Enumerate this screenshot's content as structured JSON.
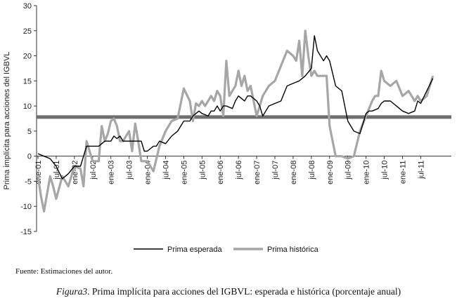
{
  "source": "Fuente: Estimaciones del autor.",
  "caption": {
    "figure_label": "Figura3",
    "text": ". Prima implícita para acciones del IGBVL: esperada e histórica (porcentaje anual)"
  },
  "chart_data": {
    "type": "line",
    "title": "",
    "ylabel": "Prima implícita para acciones del IGBVL",
    "xlabel": "",
    "ylim": [
      -15,
      30
    ],
    "yticks": [
      -15,
      -10,
      -5,
      0,
      5,
      10,
      15,
      20,
      25,
      30
    ],
    "xlim": [
      0,
      131
    ],
    "xticks": [
      {
        "label": "ene-01",
        "x": 0
      },
      {
        "label": "jul-01",
        "x": 6
      },
      {
        "label": "ene-02",
        "x": 12
      },
      {
        "label": "jul-02",
        "x": 18
      },
      {
        "label": "ene-03",
        "x": 24
      },
      {
        "label": "jul-03",
        "x": 30
      },
      {
        "label": "ene-04",
        "x": 36
      },
      {
        "label": "jul-04",
        "x": 42
      },
      {
        "label": "ene-05",
        "x": 48
      },
      {
        "label": "jul-05",
        "x": 54
      },
      {
        "label": "ene-06",
        "x": 60
      },
      {
        "label": "jul-06",
        "x": 66
      },
      {
        "label": "ene-07",
        "x": 72
      },
      {
        "label": "jul-07",
        "x": 78
      },
      {
        "label": "ene-08",
        "x": 84
      },
      {
        "label": "jul-08",
        "x": 90
      },
      {
        "label": "ene-09",
        "x": 96
      },
      {
        "label": "jul-09",
        "x": 102
      },
      {
        "label": "ene-10",
        "x": 108
      },
      {
        "label": "jul-10",
        "x": 114
      },
      {
        "label": "ene-11",
        "x": 120
      },
      {
        "label": "jul-11",
        "x": 126
      }
    ],
    "grid": false,
    "legend_position": "bottom-center",
    "reference_line": {
      "y": 7.8,
      "color": "#6e6e6e"
    },
    "series": [
      {
        "name": "Prima esperada",
        "color": "#000000",
        "x": [
          0,
          2,
          4,
          6,
          8,
          10,
          12,
          14,
          16,
          18,
          20,
          22,
          24,
          25,
          26,
          27,
          28,
          30,
          32,
          34,
          35,
          36,
          38,
          39,
          40,
          42,
          44,
          46,
          48,
          50,
          51,
          52,
          53,
          54,
          56,
          57,
          58,
          59,
          60,
          61,
          62,
          64,
          65,
          66,
          68,
          69,
          70,
          72,
          73,
          74,
          76,
          78,
          80,
          82,
          84,
          86,
          88,
          90,
          91,
          92,
          94,
          95,
          96,
          98,
          100,
          102,
          104,
          106,
          108,
          109,
          110,
          112,
          113,
          114,
          116,
          118,
          120,
          122,
          124,
          125,
          126,
          128,
          130
        ],
        "values": [
          0.5,
          0,
          -0.5,
          -2,
          -4.5,
          -3.5,
          -2,
          -2,
          2,
          2,
          2,
          3,
          3,
          4,
          3.5,
          4,
          3,
          3,
          3,
          3,
          1,
          1,
          2,
          2,
          3,
          2.5,
          4,
          5,
          7,
          7,
          8,
          8.5,
          9,
          8.5,
          8,
          9,
          9,
          10,
          9,
          10,
          10,
          9.5,
          11,
          12,
          11,
          12,
          12,
          11,
          10,
          8,
          10,
          10.5,
          11,
          14,
          14.5,
          15,
          16,
          17.5,
          24,
          21,
          19,
          20,
          19,
          14,
          13,
          7,
          5,
          4.5,
          8.5,
          9,
          9,
          9.5,
          10.5,
          11,
          11,
          10,
          9,
          8.5,
          9,
          11,
          10.5,
          13,
          15.5
        ]
      },
      {
        "name": "Prima histórica",
        "color": "#a6a6a6",
        "x": [
          0,
          1,
          2,
          4,
          5,
          6,
          8,
          10,
          12,
          14,
          15,
          16,
          18,
          20,
          21,
          22,
          23,
          24,
          25,
          26,
          27,
          28,
          30,
          31,
          32,
          33,
          34,
          36,
          38,
          40,
          42,
          44,
          46,
          48,
          50,
          51,
          52,
          53,
          54,
          55,
          56,
          57,
          58,
          59,
          60,
          61,
          62,
          63,
          64,
          65,
          66,
          67,
          68,
          69,
          70,
          72,
          73,
          74,
          76,
          78,
          80,
          82,
          84,
          85,
          86,
          87,
          88,
          89,
          90,
          91,
          92,
          94,
          95,
          96,
          98,
          100,
          102,
          104,
          106,
          108,
          110,
          111,
          112,
          113,
          114,
          116,
          118,
          120,
          122,
          124,
          125,
          126,
          128,
          130
        ],
        "values": [
          -4,
          -8,
          -11,
          -4,
          -6,
          -8.5,
          -4,
          -6,
          -2,
          -2.5,
          -6,
          3,
          -1,
          -1,
          6,
          3,
          4.5,
          7,
          7.5,
          6,
          3,
          3,
          5,
          1,
          6.5,
          3,
          -1,
          -1,
          -3,
          2,
          5,
          7,
          7.5,
          13.5,
          11,
          7,
          10.5,
          10,
          11,
          10,
          11,
          12,
          11,
          13,
          12,
          8,
          19,
          12,
          13,
          14,
          17,
          14,
          16,
          13,
          14,
          8,
          10,
          12,
          14,
          15,
          18,
          21,
          20,
          19,
          23,
          16,
          25,
          20,
          16,
          17,
          16,
          16,
          16,
          6,
          0,
          0,
          -0.5,
          0,
          5,
          8,
          11,
          12,
          12,
          17,
          15,
          14,
          15,
          12,
          13,
          11,
          12,
          11,
          12,
          16
        ]
      }
    ]
  }
}
